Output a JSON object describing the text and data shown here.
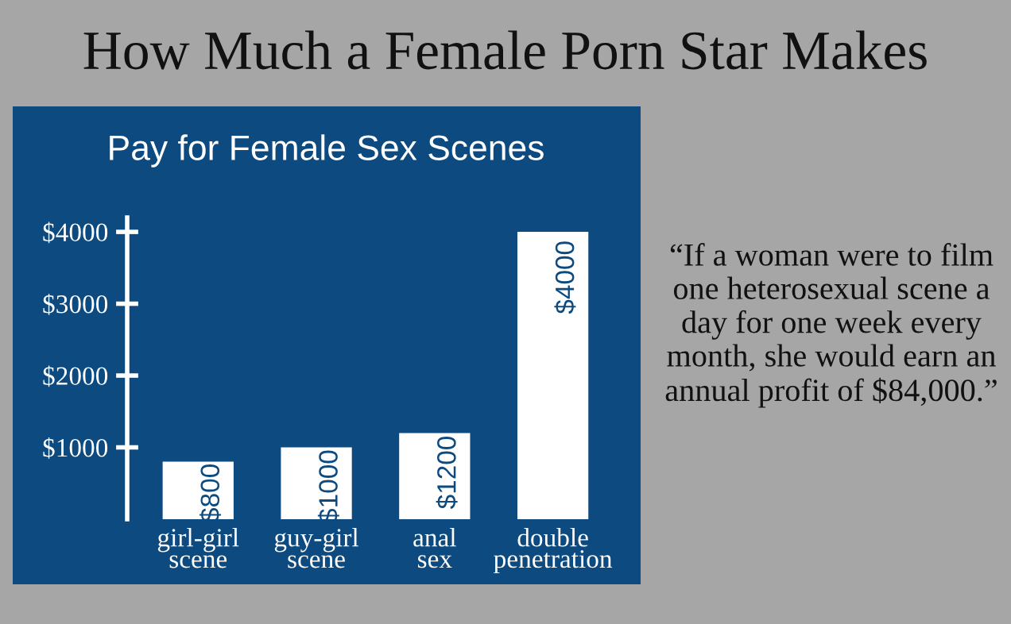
{
  "chart_data": {
    "type": "bar",
    "title": "How Much a Female Porn Star Makes",
    "subtitle": "Pay for Female Sex Scenes",
    "categories": [
      "girl-girl\nscene",
      "guy-girl\nscene",
      "anal\nsex",
      "double\npenetration"
    ],
    "values": [
      800,
      1000,
      1200,
      4000
    ],
    "color": "#ffffff",
    "value_labels": [
      "$800",
      "$1000",
      "$1200",
      "$4000"
    ],
    "ylim": [
      0,
      4200
    ],
    "yticks": [
      {
        "value": 1000,
        "label": "$1000"
      },
      {
        "value": 2000,
        "label": "$2000"
      },
      {
        "value": 3000,
        "label": "$3000"
      },
      {
        "value": 4000,
        "label": "$4000"
      }
    ],
    "annotations": [
      "“If a woman were to film one heterosexual scene a day for one week every month, she would earn an annual profit of $84,000.”"
    ]
  }
}
